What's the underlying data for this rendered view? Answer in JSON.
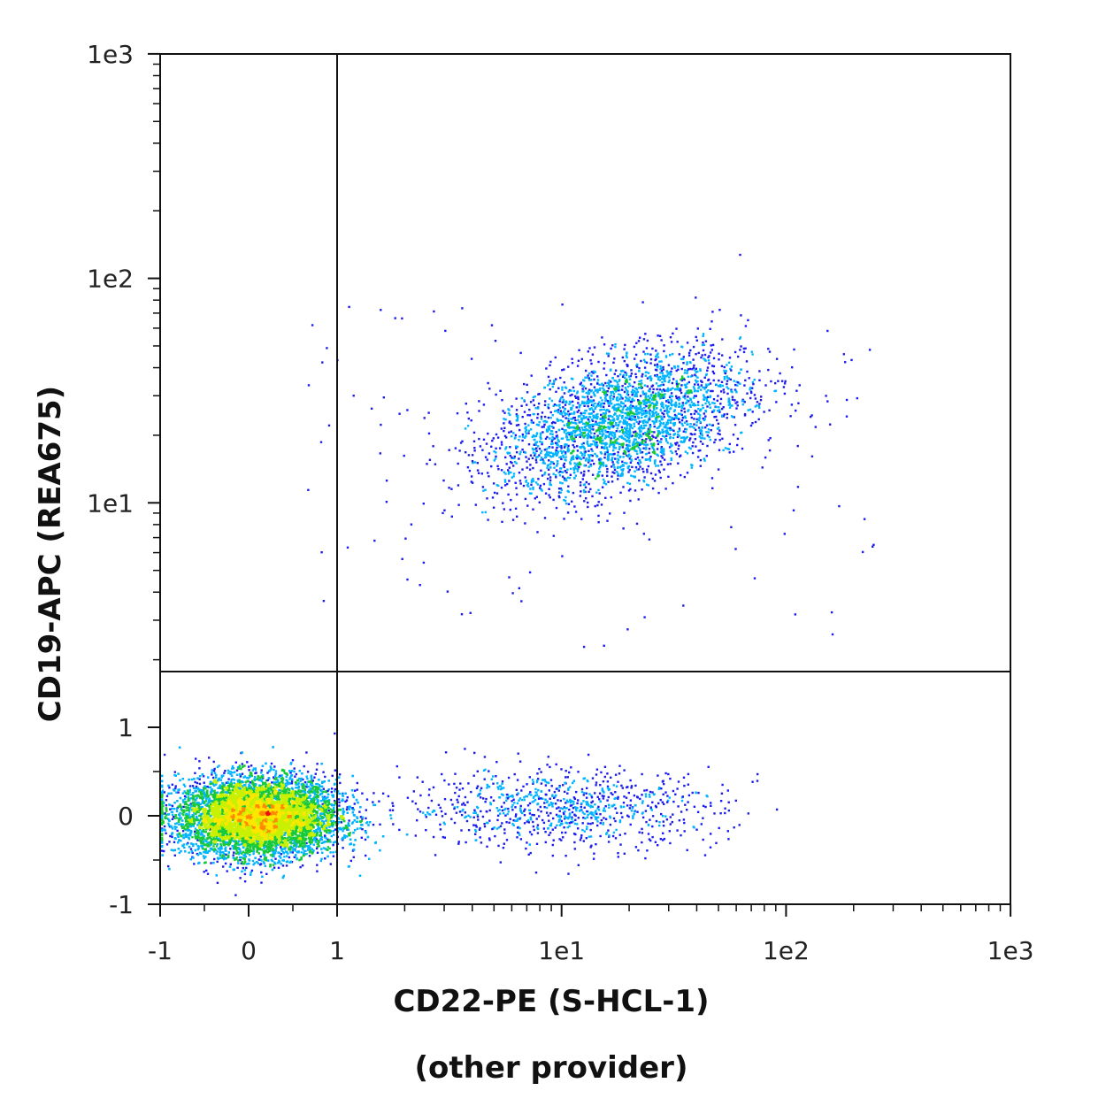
{
  "chart_data": {
    "type": "scatter",
    "subtype": "flow-cytometry-density-dot-plot",
    "xlabel": "CD22-PE (S-HCL-1)",
    "xlabel_line2": "(other provider)",
    "ylabel": "CD19-APC (REA675)",
    "x_scale": "hybrid linear/log (linear -1 to 1, log 1 to 1e3)",
    "y_scale": "hybrid linear/log (linear -1 to 1, log 1 to 1e3)",
    "x_ticks": [
      "-1",
      "0",
      "1",
      "1e1",
      "1e2",
      "1e3"
    ],
    "y_ticks": [
      "-1",
      "0",
      "1",
      "1e1",
      "1e2",
      "1e3"
    ],
    "xlim": [
      -1,
      1000
    ],
    "ylim": [
      -1,
      1000
    ],
    "grid": false,
    "legend": "none",
    "quadrant_gate": {
      "x": 1,
      "y": 2
    },
    "density_colors": [
      "#1c1cf0",
      "#00b4ff",
      "#18c93a",
      "#c8f000",
      "#ffe600",
      "#ff8a00",
      "#e81010"
    ],
    "populations": [
      {
        "name": "",
        "center_x": 0.1,
        "center_y": 0.0,
        "spread_x": 0.45,
        "spread_y": 0.22,
        "count": 9000,
        "note": "dense double-negative population"
      },
      {
        "name": "",
        "center_x": 10,
        "center_y": 0.1,
        "spread_x_decades": 0.35,
        "spread_y": 0.22,
        "count": 900
      },
      {
        "name": "",
        "center_x": 18,
        "center_y": 23,
        "spread_x_decades": 0.28,
        "spread_y_decades": 0.16,
        "count": 3000,
        "note": "double-positive population"
      }
    ]
  }
}
